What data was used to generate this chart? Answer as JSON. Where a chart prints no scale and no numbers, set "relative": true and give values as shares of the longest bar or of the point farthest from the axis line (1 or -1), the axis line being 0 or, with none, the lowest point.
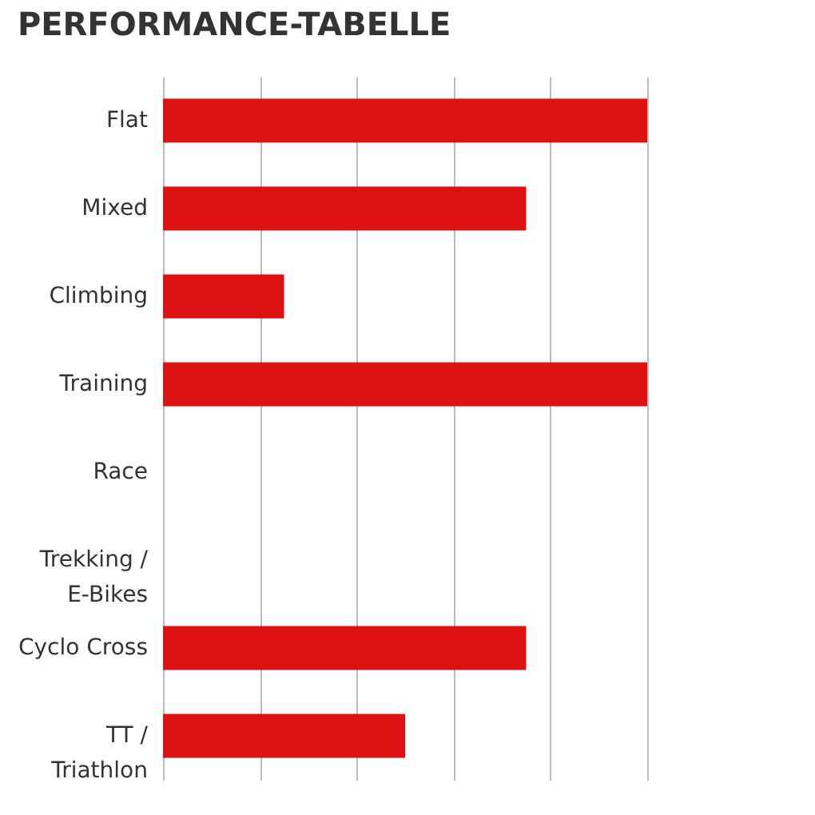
{
  "chart_data": {
    "type": "bar",
    "title": "PERFORMANCE-TABELLE",
    "orientation": "horizontal",
    "relative": true,
    "grid": "x",
    "categories": [
      "Flat",
      "Mixed",
      "Climbing",
      "Training",
      "Race",
      "Trekking /\nE-Bikes",
      "Cyclo Cross",
      "TT /\nTriathlon"
    ],
    "values": [
      1,
      0.75,
      0.25,
      1,
      0,
      0,
      0.75,
      0.5
    ],
    "color": "#dd1111"
  }
}
